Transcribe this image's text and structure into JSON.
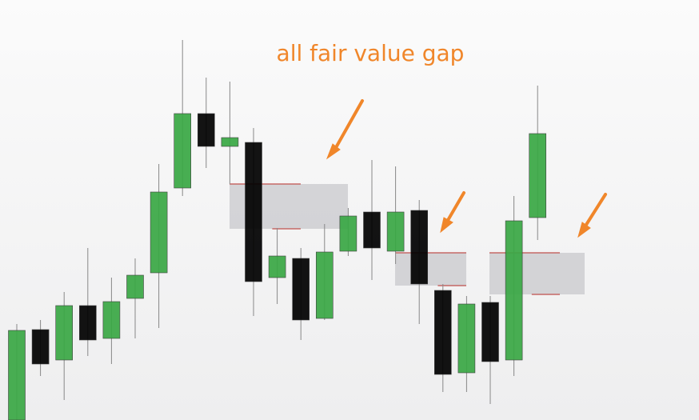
{
  "chart_data": {
    "type": "candlestick",
    "title": "all fair value gap",
    "ylim": [
      0,
      525
    ],
    "up_color": "#3aa845",
    "down_color": "#000000",
    "open": [
      0,
      113,
      75,
      143,
      102,
      152,
      184,
      290,
      383,
      342,
      347,
      178,
      202,
      127,
      211,
      260,
      211,
      262,
      162,
      59,
      147,
      75,
      253
    ],
    "high": [
      120,
      125,
      160,
      215,
      178,
      202,
      320,
      475,
      428,
      423,
      365,
      240,
      215,
      245,
      265,
      325,
      317,
      275,
      170,
      155,
      155,
      280,
      418
    ],
    "low": [
      0,
      55,
      25,
      80,
      70,
      102,
      115,
      280,
      315,
      295,
      130,
      145,
      100,
      125,
      205,
      175,
      195,
      120,
      35,
      35,
      20,
      55,
      225
    ],
    "close": [
      112,
      70,
      143,
      100,
      148,
      181,
      285,
      383,
      342,
      353,
      173,
      205,
      125,
      210,
      255,
      215,
      260,
      170,
      57,
      145,
      73,
      249,
      358
    ],
    "gaps": [
      {
        "high": 295,
        "low": 239
      },
      {
        "high": 209,
        "low": 168
      },
      {
        "high": 209,
        "low": 157
      }
    ],
    "gap_color": "#c8c8cc",
    "gap_edge_color": "#c0504d",
    "annotation_color": "#f0862a"
  }
}
